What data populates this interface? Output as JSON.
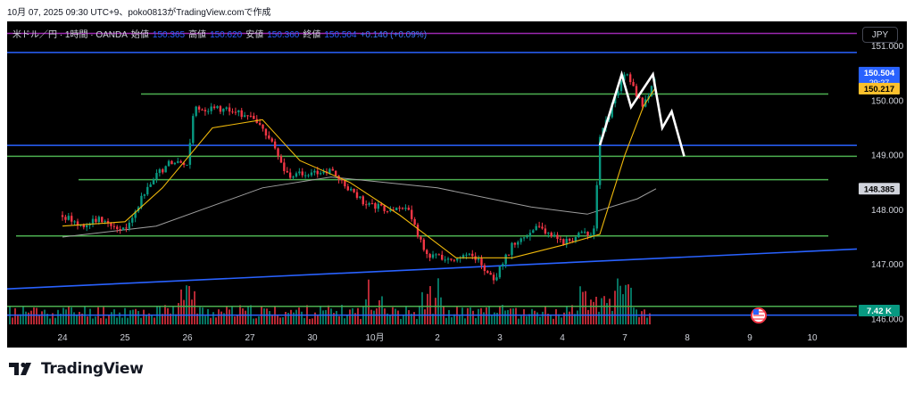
{
  "caption": "10月 07, 2025 09:30 UTC+9、poko0813がTradingView.comで作成",
  "legend": {
    "symbol": "米ドル／円 · 1時間 · OANDA",
    "open_label": "始値",
    "open": "150.365",
    "high_label": "高値",
    "high": "150.620",
    "low_label": "安値",
    "low": "150.360",
    "close_label": "終値",
    "close": "150.504",
    "change": "+0.140 (+0.09%)"
  },
  "currency_button": "JPY",
  "brand": "TradingView",
  "colors": {
    "background": "#000000",
    "up": "#089981",
    "down": "#f23645",
    "ma_fast": "#f0b90b",
    "ma_slow": "#9e9e9e",
    "support_green": "#4caf50",
    "level_blue": "#2962ff",
    "level_purple": "#9c27b0",
    "projection": "#ffffff"
  },
  "chart_data": {
    "type": "candlestick",
    "title": "米ドル／円 · 1時間 · OANDA",
    "y_axis": {
      "range": [
        145.9,
        151.45
      ],
      "ticks": [
        "151.000",
        "150.000",
        "149.000",
        "148.000",
        "147.000",
        "146.000"
      ],
      "side": "right"
    },
    "x_axis": {
      "ticks": [
        "24",
        "25",
        "26",
        "27",
        "30",
        "10月",
        "2",
        "3",
        "4",
        "7",
        "8",
        "9",
        "10"
      ]
    },
    "price_badges": [
      {
        "label": "150.504",
        "time": "29:27",
        "value": 150.504,
        "style": "last_price"
      },
      {
        "label": "150.217",
        "value": 150.217,
        "style": "level"
      },
      {
        "label": "148.385",
        "value": 148.385,
        "style": "ma"
      },
      {
        "label": "7.42 K",
        "value": 7.42,
        "style": "volume"
      }
    ],
    "horizontal_levels": [
      {
        "value": 151.23,
        "color": "purple",
        "extent": "full"
      },
      {
        "value": 150.88,
        "color": "blue",
        "extent": "full"
      },
      {
        "value": 150.12,
        "color": "green",
        "from_day": "26"
      },
      {
        "value": 149.18,
        "color": "blue",
        "extent": "full"
      },
      {
        "value": 148.98,
        "color": "green",
        "extent": "full"
      },
      {
        "value": 148.55,
        "color": "green",
        "from_day": "25"
      },
      {
        "value": 147.52,
        "color": "green",
        "from_day": "24"
      },
      {
        "value": 146.23,
        "color": "green",
        "extent": "full"
      },
      {
        "value": 146.07,
        "color": "blue",
        "extent": "full"
      }
    ],
    "trendline": {
      "from": {
        "day": "24",
        "value": 146.55
      },
      "to": {
        "day": "10",
        "value": 147.28
      },
      "color": "blue"
    },
    "price_path": [
      {
        "x": 0,
        "v": 147.9
      },
      {
        "x": 0.3,
        "v": 147.7
      },
      {
        "x": 0.6,
        "v": 147.82
      },
      {
        "x": 1,
        "v": 147.62
      },
      {
        "x": 1.4,
        "v": 148.5
      },
      {
        "x": 1.7,
        "v": 148.85
      },
      {
        "x": 2,
        "v": 148.82
      },
      {
        "x": 2.1,
        "v": 149.85
      },
      {
        "x": 2.5,
        "v": 149.85
      },
      {
        "x": 2.8,
        "v": 149.8
      },
      {
        "x": 3.2,
        "v": 149.55
      },
      {
        "x": 3.6,
        "v": 148.62
      },
      {
        "x": 4.3,
        "v": 148.7
      },
      {
        "x": 4.8,
        "v": 148.15
      },
      {
        "x": 5.3,
        "v": 147.95
      },
      {
        "x": 5.5,
        "v": 148.1
      },
      {
        "x": 5.8,
        "v": 147.2
      },
      {
        "x": 6.2,
        "v": 147.1
      },
      {
        "x": 6.6,
        "v": 147.15
      },
      {
        "x": 6.9,
        "v": 146.7
      },
      {
        "x": 7.2,
        "v": 147.35
      },
      {
        "x": 7.6,
        "v": 147.7
      },
      {
        "x": 8.0,
        "v": 147.4
      },
      {
        "x": 8.2,
        "v": 147.5
      },
      {
        "x": 8.5,
        "v": 147.6
      },
      {
        "x": 8.6,
        "v": 149.3
      },
      {
        "x": 9.0,
        "v": 150.5
      },
      {
        "x": 9.3,
        "v": 149.9
      },
      {
        "x": 9.5,
        "v": 150.45
      }
    ],
    "ma_fast_path": [
      {
        "x": 0,
        "v": 147.7
      },
      {
        "x": 1,
        "v": 147.78
      },
      {
        "x": 1.6,
        "v": 148.4
      },
      {
        "x": 2.4,
        "v": 149.5
      },
      {
        "x": 3.2,
        "v": 149.65
      },
      {
        "x": 3.8,
        "v": 148.9
      },
      {
        "x": 4.6,
        "v": 148.5
      },
      {
        "x": 5.4,
        "v": 147.9
      },
      {
        "x": 6.3,
        "v": 147.12
      },
      {
        "x": 7.2,
        "v": 147.12
      },
      {
        "x": 8.0,
        "v": 147.35
      },
      {
        "x": 8.6,
        "v": 147.55
      },
      {
        "x": 9.0,
        "v": 149.0
      },
      {
        "x": 9.3,
        "v": 149.9
      },
      {
        "x": 9.5,
        "v": 150.25
      }
    ],
    "ma_slow_path": [
      {
        "x": 0,
        "v": 147.5
      },
      {
        "x": 1.5,
        "v": 147.7
      },
      {
        "x": 3.2,
        "v": 148.4
      },
      {
        "x": 4.3,
        "v": 148.6
      },
      {
        "x": 6.0,
        "v": 148.4
      },
      {
        "x": 7.5,
        "v": 148.05
      },
      {
        "x": 8.4,
        "v": 147.92
      },
      {
        "x": 9.2,
        "v": 148.2
      },
      {
        "x": 9.5,
        "v": 148.385
      }
    ],
    "projection_path": [
      {
        "x": 8.6,
        "v": 149.18
      },
      {
        "x": 8.95,
        "v": 150.48
      },
      {
        "x": 9.1,
        "v": 149.88
      },
      {
        "x": 9.45,
        "v": 150.48
      },
      {
        "x": 9.6,
        "v": 149.5
      },
      {
        "x": 9.75,
        "v": 149.8
      },
      {
        "x": 9.95,
        "v": 148.98
      }
    ],
    "volume_max_k": 17.5,
    "last_volume_k": 7.42
  }
}
